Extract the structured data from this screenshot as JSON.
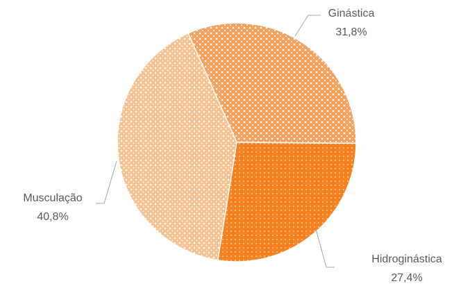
{
  "chart_data": {
    "type": "pie",
    "categories": [
      "Ginástica",
      "Hidroginástica",
      "Musculação"
    ],
    "values": [
      31.8,
      27.4,
      40.8
    ],
    "value_labels": [
      "31,8%",
      "27,4%",
      "40,8%"
    ],
    "colors": [
      "#f4a260",
      "#f5821f",
      "#f8c08e"
    ]
  }
}
